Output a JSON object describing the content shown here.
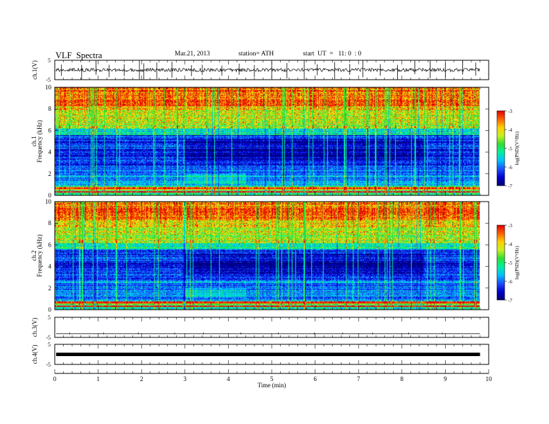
{
  "header": {
    "title": "VLF  Spectra",
    "date": "Mar.21, 2013",
    "station": "station= ATH",
    "start": "start  UT  =   11: 0  : 0"
  },
  "colors": {
    "background": "#ffffff",
    "axis": "#000000",
    "colormap": [
      "#000070",
      "#0000d0",
      "#1a4fff",
      "#00c0ff",
      "#00f0a0",
      "#30e030",
      "#c8f020",
      "#ffd000",
      "#ff6000",
      "#e00000"
    ]
  },
  "chart_data": [
    {
      "type": "line",
      "panel": "ch1-waveform",
      "ylabel": "ch.1(V)",
      "ylim": [
        -5,
        5
      ],
      "yticks": [
        "5",
        "-5"
      ],
      "xlim": [
        0,
        10
      ],
      "baseline_v": 0.0,
      "spikes_min": [
        0.15,
        0.62,
        0.95,
        1.25,
        1.6,
        1.95,
        2.05,
        2.35,
        2.7,
        3.15,
        3.4,
        3.85,
        4.25,
        4.6,
        5.0,
        5.35,
        5.75,
        6.05,
        6.45,
        6.8,
        7.1,
        7.5,
        7.9,
        8.3,
        8.65,
        9.0,
        9.4,
        9.7
      ]
    },
    {
      "type": "heatmap",
      "panel": "ch1-spectrogram",
      "ylabel": "Frequency  (kHz)",
      "channel_label": "ch.1",
      "ylim": [
        0,
        10
      ],
      "yticks": [
        "0",
        "2",
        "4",
        "6",
        "8",
        "10"
      ],
      "xlim": [
        0,
        10
      ],
      "colorbar": {
        "label": "log(PSD)(V²/Hz)",
        "range": [
          -7,
          -3
        ],
        "ticks": [
          "-3",
          "-4",
          "-5",
          "-6",
          "-7"
        ]
      }
    },
    {
      "type": "heatmap",
      "panel": "ch2-spectrogram",
      "ylabel": "Frequency  (kHz)",
      "channel_label": "ch.2",
      "ylim": [
        0,
        10
      ],
      "yticks": [
        "0",
        "2",
        "4",
        "6",
        "8",
        "10"
      ],
      "xlim": [
        0,
        10
      ],
      "colorbar": {
        "label": "log(PSD)(V²/Hz)",
        "range": [
          -7,
          -3
        ],
        "ticks": [
          "-3",
          "-4",
          "-5",
          "-6",
          "-7"
        ]
      }
    },
    {
      "type": "line",
      "panel": "ch3-waveform",
      "ylabel": "ch.3(V)",
      "ylim": [
        -5,
        5
      ],
      "yticks": [
        "5",
        "-5"
      ],
      "xlim": [
        0,
        10
      ],
      "baseline_v": -3.2
    },
    {
      "type": "line",
      "panel": "ch4-waveform",
      "ylabel": "ch.4(V)",
      "ylim": [
        -5,
        5
      ],
      "yticks": [
        "5",
        "-5"
      ],
      "xlim": [
        0,
        10
      ],
      "baseline_v": 0.0
    }
  ],
  "xaxis": {
    "label": "Time  (min)",
    "ticks": [
      "0",
      "1",
      "2",
      "3",
      "4",
      "5",
      "6",
      "7",
      "8",
      "9",
      "10"
    ],
    "range": [
      0,
      10
    ],
    "data_end_min": 9.8
  }
}
